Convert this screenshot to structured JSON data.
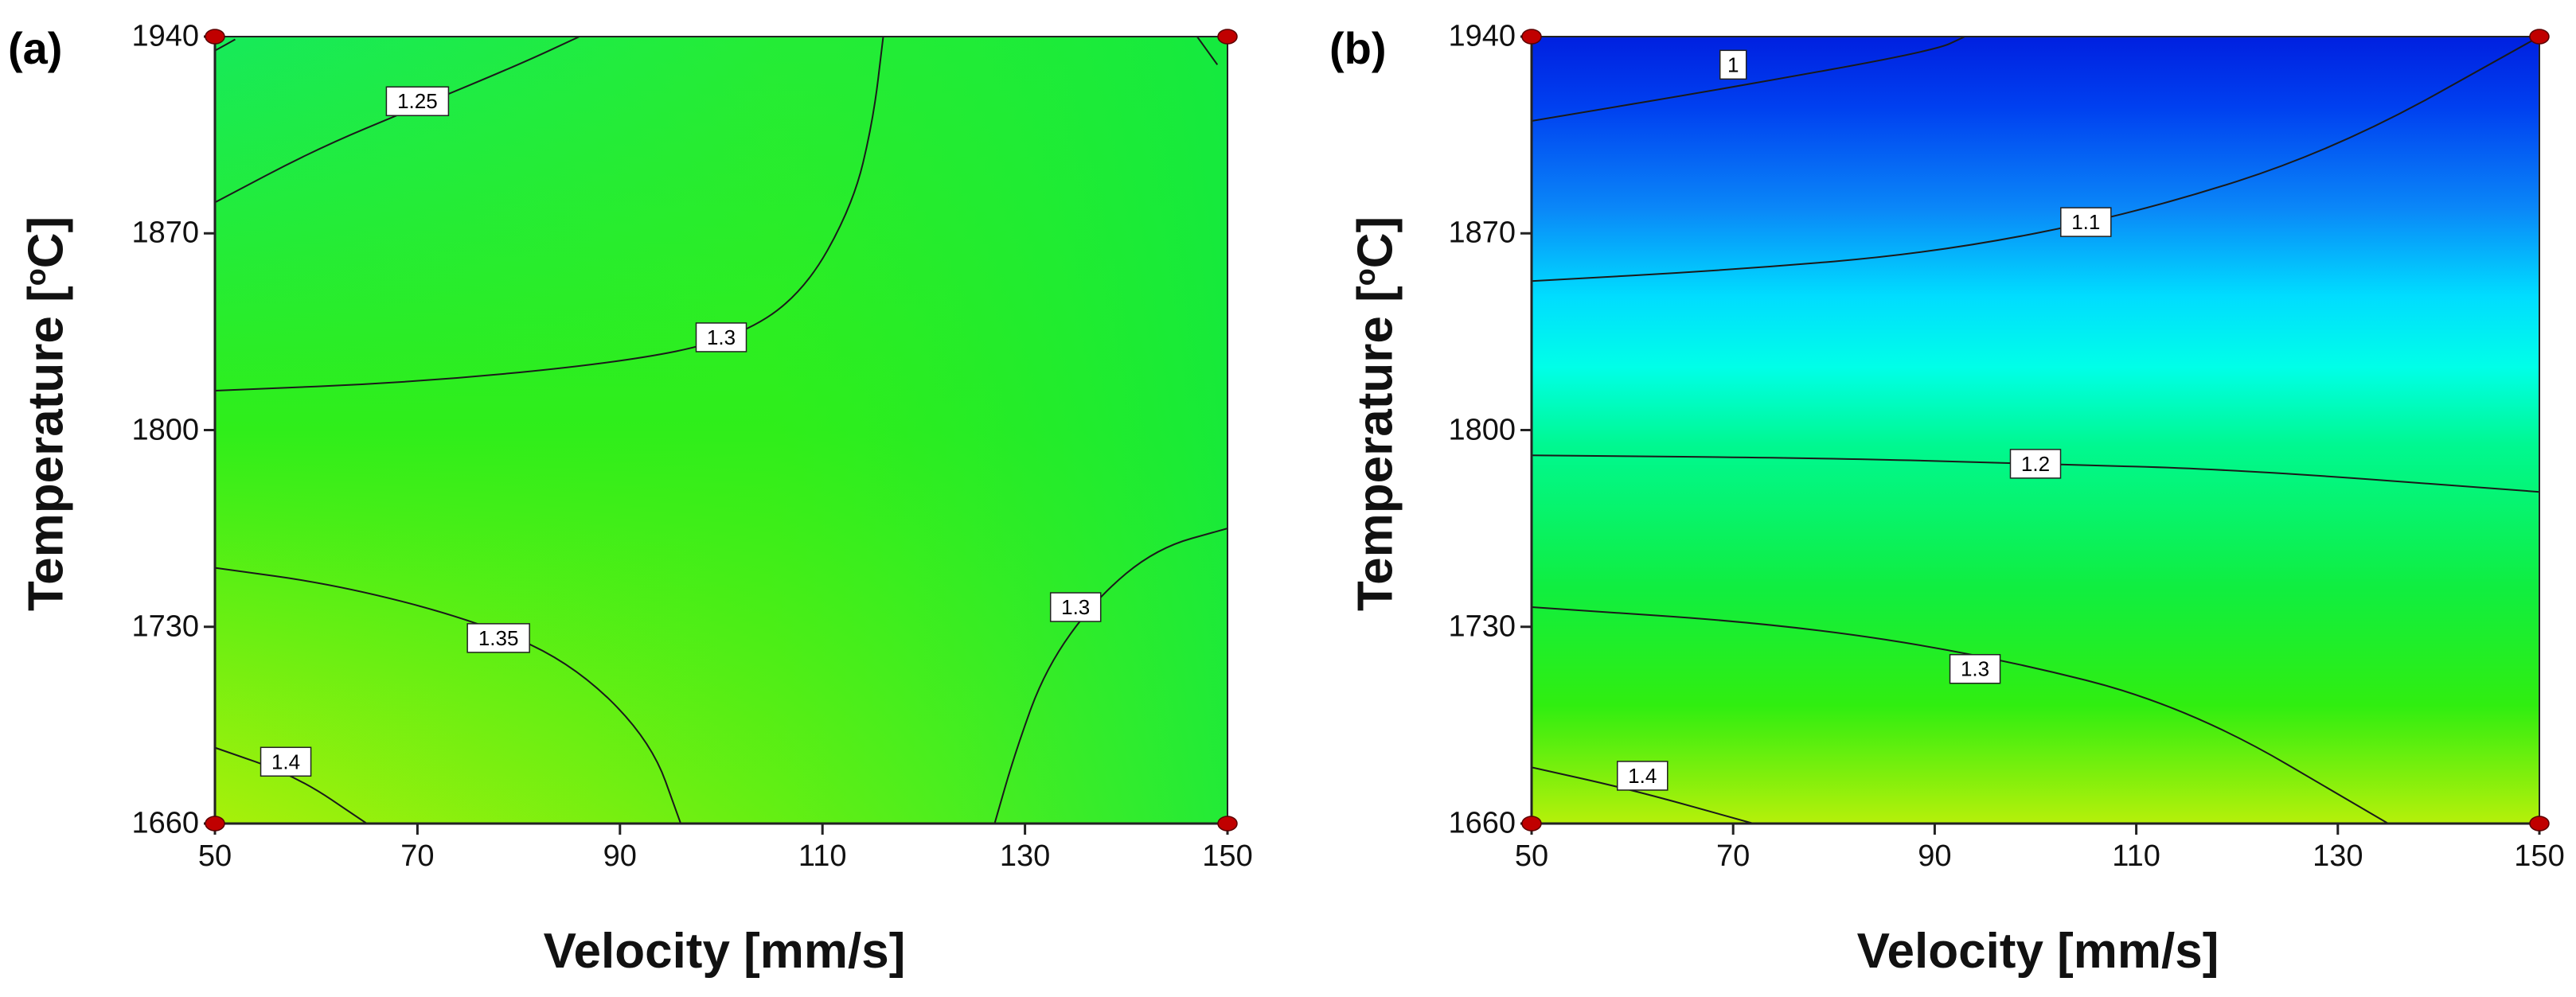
{
  "chart_data": [
    {
      "type": "contour",
      "panel_label": "(a)",
      "xlabel": "Velocity [mm/s]",
      "ylabel_main": "Temperature [",
      "ylabel_sup": "o",
      "ylabel_tail": "C]",
      "xlim": [
        50,
        150
      ],
      "ylim": [
        1660,
        1940
      ],
      "xticks": [
        "50",
        "70",
        "90",
        "110",
        "130",
        "150"
      ],
      "yticks": [
        "1660",
        "1730",
        "1800",
        "1870",
        "1940"
      ],
      "design_points": [
        [
          50,
          1660
        ],
        [
          50,
          1940
        ],
        [
          150,
          1660
        ],
        [
          150,
          1940
        ]
      ],
      "contours": [
        {
          "level": "1.25",
          "points": [
            [
              50,
              1881
            ],
            [
              60,
              1900
            ],
            [
              70,
              1915
            ],
            [
              80,
              1930
            ],
            [
              86,
              1940
            ]
          ]
        },
        {
          "level": "1.25",
          "points": [
            [
              50,
              1935
            ],
            [
              52,
              1939
            ]
          ]
        },
        {
          "level": "1.25",
          "points": [
            [
              149,
              1930
            ],
            [
              147,
              1940
            ]
          ]
        },
        {
          "level": "1.3",
          "points": [
            [
              50,
              1814
            ],
            [
              70,
              1817
            ],
            [
              90,
              1824
            ],
            [
              101,
              1832
            ],
            [
              108,
              1848
            ],
            [
              113,
              1880
            ],
            [
              115,
              1910
            ],
            [
              116,
              1940
            ]
          ]
        },
        {
          "level": "1.3",
          "points": [
            [
              127,
              1660
            ],
            [
              129,
              1685
            ],
            [
              132,
              1715
            ],
            [
              137,
              1740
            ],
            [
              143,
              1758
            ],
            [
              150,
              1765
            ]
          ]
        },
        {
          "level": "1.35",
          "points": [
            [
              50,
              1751
            ],
            [
              62,
              1745
            ],
            [
              75,
              1733
            ],
            [
              85,
              1718
            ],
            [
              93,
              1690
            ],
            [
              96,
              1660
            ]
          ]
        },
        {
          "level": "1.4",
          "points": [
            [
              50,
              1687
            ],
            [
              58,
              1677
            ],
            [
              65,
              1660
            ]
          ]
        }
      ],
      "labels": [
        {
          "text": "1.25",
          "x": 70,
          "y": 1917
        },
        {
          "text": "1.3",
          "x": 100,
          "y": 1833
        },
        {
          "text": "1.35",
          "x": 78,
          "y": 1726
        },
        {
          "text": "1.4",
          "x": 57,
          "y": 1682
        },
        {
          "text": "1.3",
          "x": 135,
          "y": 1737
        }
      ],
      "gradient": {
        "corner_top_left": "#17ea5a",
        "corner_top_right": "#22f030",
        "corner_bottom_left": "#a8f00a",
        "corner_bottom_right": "#14ea3c",
        "center": "#2fee1a"
      }
    },
    {
      "type": "contour",
      "panel_label": "(b)",
      "xlabel": "Velocity [mm/s]",
      "ylabel_main": "Temperature [",
      "ylabel_sup": "o",
      "ylabel_tail": "C]",
      "xlim": [
        50,
        150
      ],
      "ylim": [
        1660,
        1940
      ],
      "xticks": [
        "50",
        "70",
        "90",
        "110",
        "130",
        "150"
      ],
      "yticks": [
        "1660",
        "1730",
        "1800",
        "1870",
        "1940"
      ],
      "design_points": [
        [
          50,
          1660
        ],
        [
          50,
          1940
        ],
        [
          150,
          1660
        ],
        [
          150,
          1940
        ]
      ],
      "contours": [
        {
          "level": "1",
          "points": [
            [
              50,
              1910
            ],
            [
              70,
              1922
            ],
            [
              90,
              1935
            ],
            [
              93,
              1940
            ]
          ]
        },
        {
          "level": "1.1",
          "points": [
            [
              50,
              1853
            ],
            [
              70,
              1857
            ],
            [
              90,
              1863
            ],
            [
              110,
              1877
            ],
            [
              130,
              1900
            ],
            [
              150,
              1940
            ]
          ]
        },
        {
          "level": "1.2",
          "points": [
            [
              50,
              1791
            ],
            [
              80,
              1790
            ],
            [
              100,
              1788
            ],
            [
              120,
              1786
            ],
            [
              150,
              1778
            ]
          ]
        },
        {
          "level": "1.3",
          "points": [
            [
              50,
              1737
            ],
            [
              75,
              1731
            ],
            [
              95,
              1720
            ],
            [
              115,
              1702
            ],
            [
              135,
              1660
            ]
          ]
        },
        {
          "level": "1.4",
          "points": [
            [
              50,
              1680
            ],
            [
              60,
              1672
            ],
            [
              72,
              1660
            ]
          ]
        }
      ],
      "labels": [
        {
          "text": "1",
          "x": 70,
          "y": 1930
        },
        {
          "text": "1.1",
          "x": 105,
          "y": 1874
        },
        {
          "text": "1.2",
          "x": 100,
          "y": 1788
        },
        {
          "text": "1.3",
          "x": 94,
          "y": 1715
        },
        {
          "text": "1.4",
          "x": 61,
          "y": 1677
        }
      ],
      "vertical_stops": [
        {
          "t": 0.0,
          "color": "#0020e0"
        },
        {
          "t": 0.09,
          "color": "#0040f0"
        },
        {
          "t": 0.22,
          "color": "#0a88f8"
        },
        {
          "t": 0.33,
          "color": "#00ddff"
        },
        {
          "t": 0.42,
          "color": "#00ffe8"
        },
        {
          "t": 0.52,
          "color": "#00f890"
        },
        {
          "t": 0.7,
          "color": "#10ee40"
        },
        {
          "t": 0.85,
          "color": "#30ee10"
        },
        {
          "t": 1.0,
          "color": "#b6f00a"
        }
      ]
    }
  ]
}
